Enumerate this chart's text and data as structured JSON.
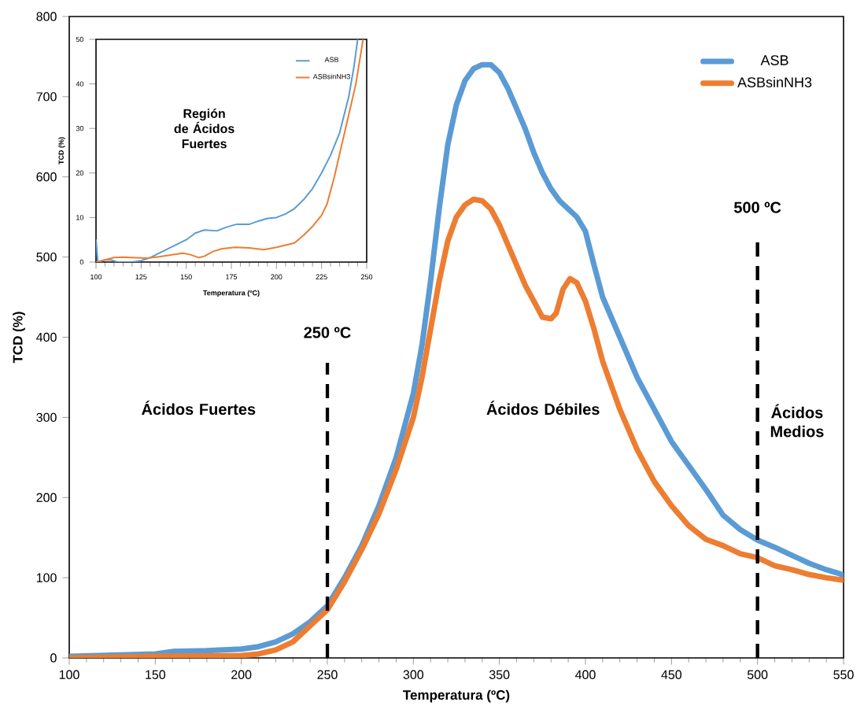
{
  "chart_data": [
    {
      "type": "line",
      "xlabel": "Temperatura (ºC)",
      "ylabel": "TCD (%)",
      "xlim": [
        100,
        550
      ],
      "ylim": [
        0,
        800
      ],
      "xticks": [
        100,
        150,
        200,
        250,
        300,
        350,
        400,
        450,
        500,
        550
      ],
      "yticks": [
        0,
        100,
        200,
        300,
        400,
        500,
        600,
        700,
        800
      ],
      "legend": "top right",
      "series": [
        {
          "name": "ASB",
          "color": "#5b9bd5",
          "x": [
            100,
            150,
            160,
            180,
            200,
            210,
            220,
            230,
            240,
            250,
            260,
            270,
            280,
            290,
            300,
            305,
            310,
            315,
            320,
            325,
            330,
            335,
            340,
            345,
            350,
            355,
            360,
            365,
            370,
            375,
            380,
            385,
            390,
            395,
            400,
            405,
            410,
            420,
            430,
            440,
            450,
            460,
            470,
            480,
            490,
            500,
            510,
            520,
            530,
            540,
            548,
            550
          ],
          "values": [
            2,
            5,
            8,
            9,
            11,
            14,
            20,
            30,
            45,
            65,
            100,
            140,
            190,
            250,
            330,
            390,
            470,
            560,
            640,
            690,
            720,
            735,
            740,
            740,
            730,
            710,
            685,
            660,
            630,
            605,
            585,
            570,
            560,
            550,
            532,
            490,
            450,
            400,
            350,
            310,
            270,
            240,
            210,
            178,
            160,
            147,
            138,
            128,
            118,
            110,
            105,
            102
          ]
        },
        {
          "name": "ASBsinNH3",
          "color": "#ed7d31",
          "x": [
            100,
            150,
            200,
            210,
            220,
            230,
            240,
            250,
            260,
            270,
            280,
            290,
            300,
            305,
            310,
            315,
            320,
            325,
            330,
            335,
            340,
            345,
            350,
            355,
            360,
            365,
            370,
            375,
            380,
            383,
            387,
            391,
            395,
            400,
            405,
            410,
            420,
            430,
            440,
            450,
            460,
            470,
            480,
            490,
            500,
            510,
            520,
            530,
            540,
            550
          ],
          "values": [
            0,
            2,
            3,
            5,
            10,
            20,
            40,
            60,
            95,
            135,
            180,
            235,
            300,
            350,
            410,
            470,
            520,
            550,
            565,
            572,
            570,
            560,
            540,
            515,
            490,
            465,
            445,
            425,
            423,
            430,
            460,
            473,
            468,
            445,
            410,
            370,
            310,
            260,
            220,
            190,
            165,
            148,
            140,
            130,
            125,
            115,
            110,
            104,
            100,
            97
          ]
        }
      ],
      "ref_lines": [
        {
          "axis": "x",
          "value": 250,
          "label": "250 ºC",
          "color": "#000000",
          "line_style": "dashed"
        },
        {
          "axis": "x",
          "value": 500,
          "label": "500 ºC",
          "color": "#000000",
          "line_style": "dashed"
        }
      ],
      "annotations": [
        "Ácidos Fuertes",
        "Ácidos Débiles",
        "Ácidos Medios"
      ]
    },
    {
      "type": "line",
      "xlabel": "Temperatura (ºC)",
      "ylabel": "TCD (%)",
      "xlim": [
        100,
        250
      ],
      "ylim": [
        0,
        50
      ],
      "xticks": [
        100,
        125,
        150,
        175,
        200,
        225,
        250
      ],
      "yticks": [
        0,
        10,
        20,
        30,
        40,
        50
      ],
      "legend": "top right",
      "series": [
        {
          "name": "ASB",
          "color": "#5b9bd5",
          "x": [
            100,
            101,
            105,
            108,
            112,
            120,
            125,
            130,
            135,
            140,
            145,
            150,
            155,
            160,
            167,
            172,
            178,
            185,
            190,
            195,
            200,
            205,
            210,
            215,
            220,
            225,
            230,
            235,
            240,
            243,
            245
          ],
          "values": [
            5,
            0,
            0.5,
            0.5,
            0,
            0,
            0.3,
            1,
            2,
            3,
            4,
            5,
            6.5,
            7.2,
            7,
            7.8,
            8.5,
            8.5,
            9.2,
            9.8,
            10,
            10.8,
            12,
            14,
            16.5,
            20,
            24,
            29,
            37,
            44,
            50
          ]
        },
        {
          "name": "ASBsinNH3",
          "color": "#ed7d31",
          "x": [
            100,
            105,
            110,
            115,
            120,
            128,
            135,
            140,
            148,
            152,
            157,
            160,
            165,
            170,
            177,
            185,
            193,
            200,
            205,
            210,
            215,
            220,
            225,
            228,
            232,
            236,
            240,
            244,
            248
          ],
          "values": [
            0,
            0.5,
            1,
            1.1,
            1,
            0.9,
            1.2,
            1.5,
            2,
            1.7,
            1,
            1.3,
            2.4,
            3,
            3.3,
            3.2,
            2.8,
            3.3,
            3.8,
            4.3,
            6,
            8,
            10.5,
            13,
            19,
            26,
            33,
            40,
            50
          ]
        }
      ],
      "annotations": [
        "Región de Ácidos Fuertes"
      ]
    }
  ]
}
